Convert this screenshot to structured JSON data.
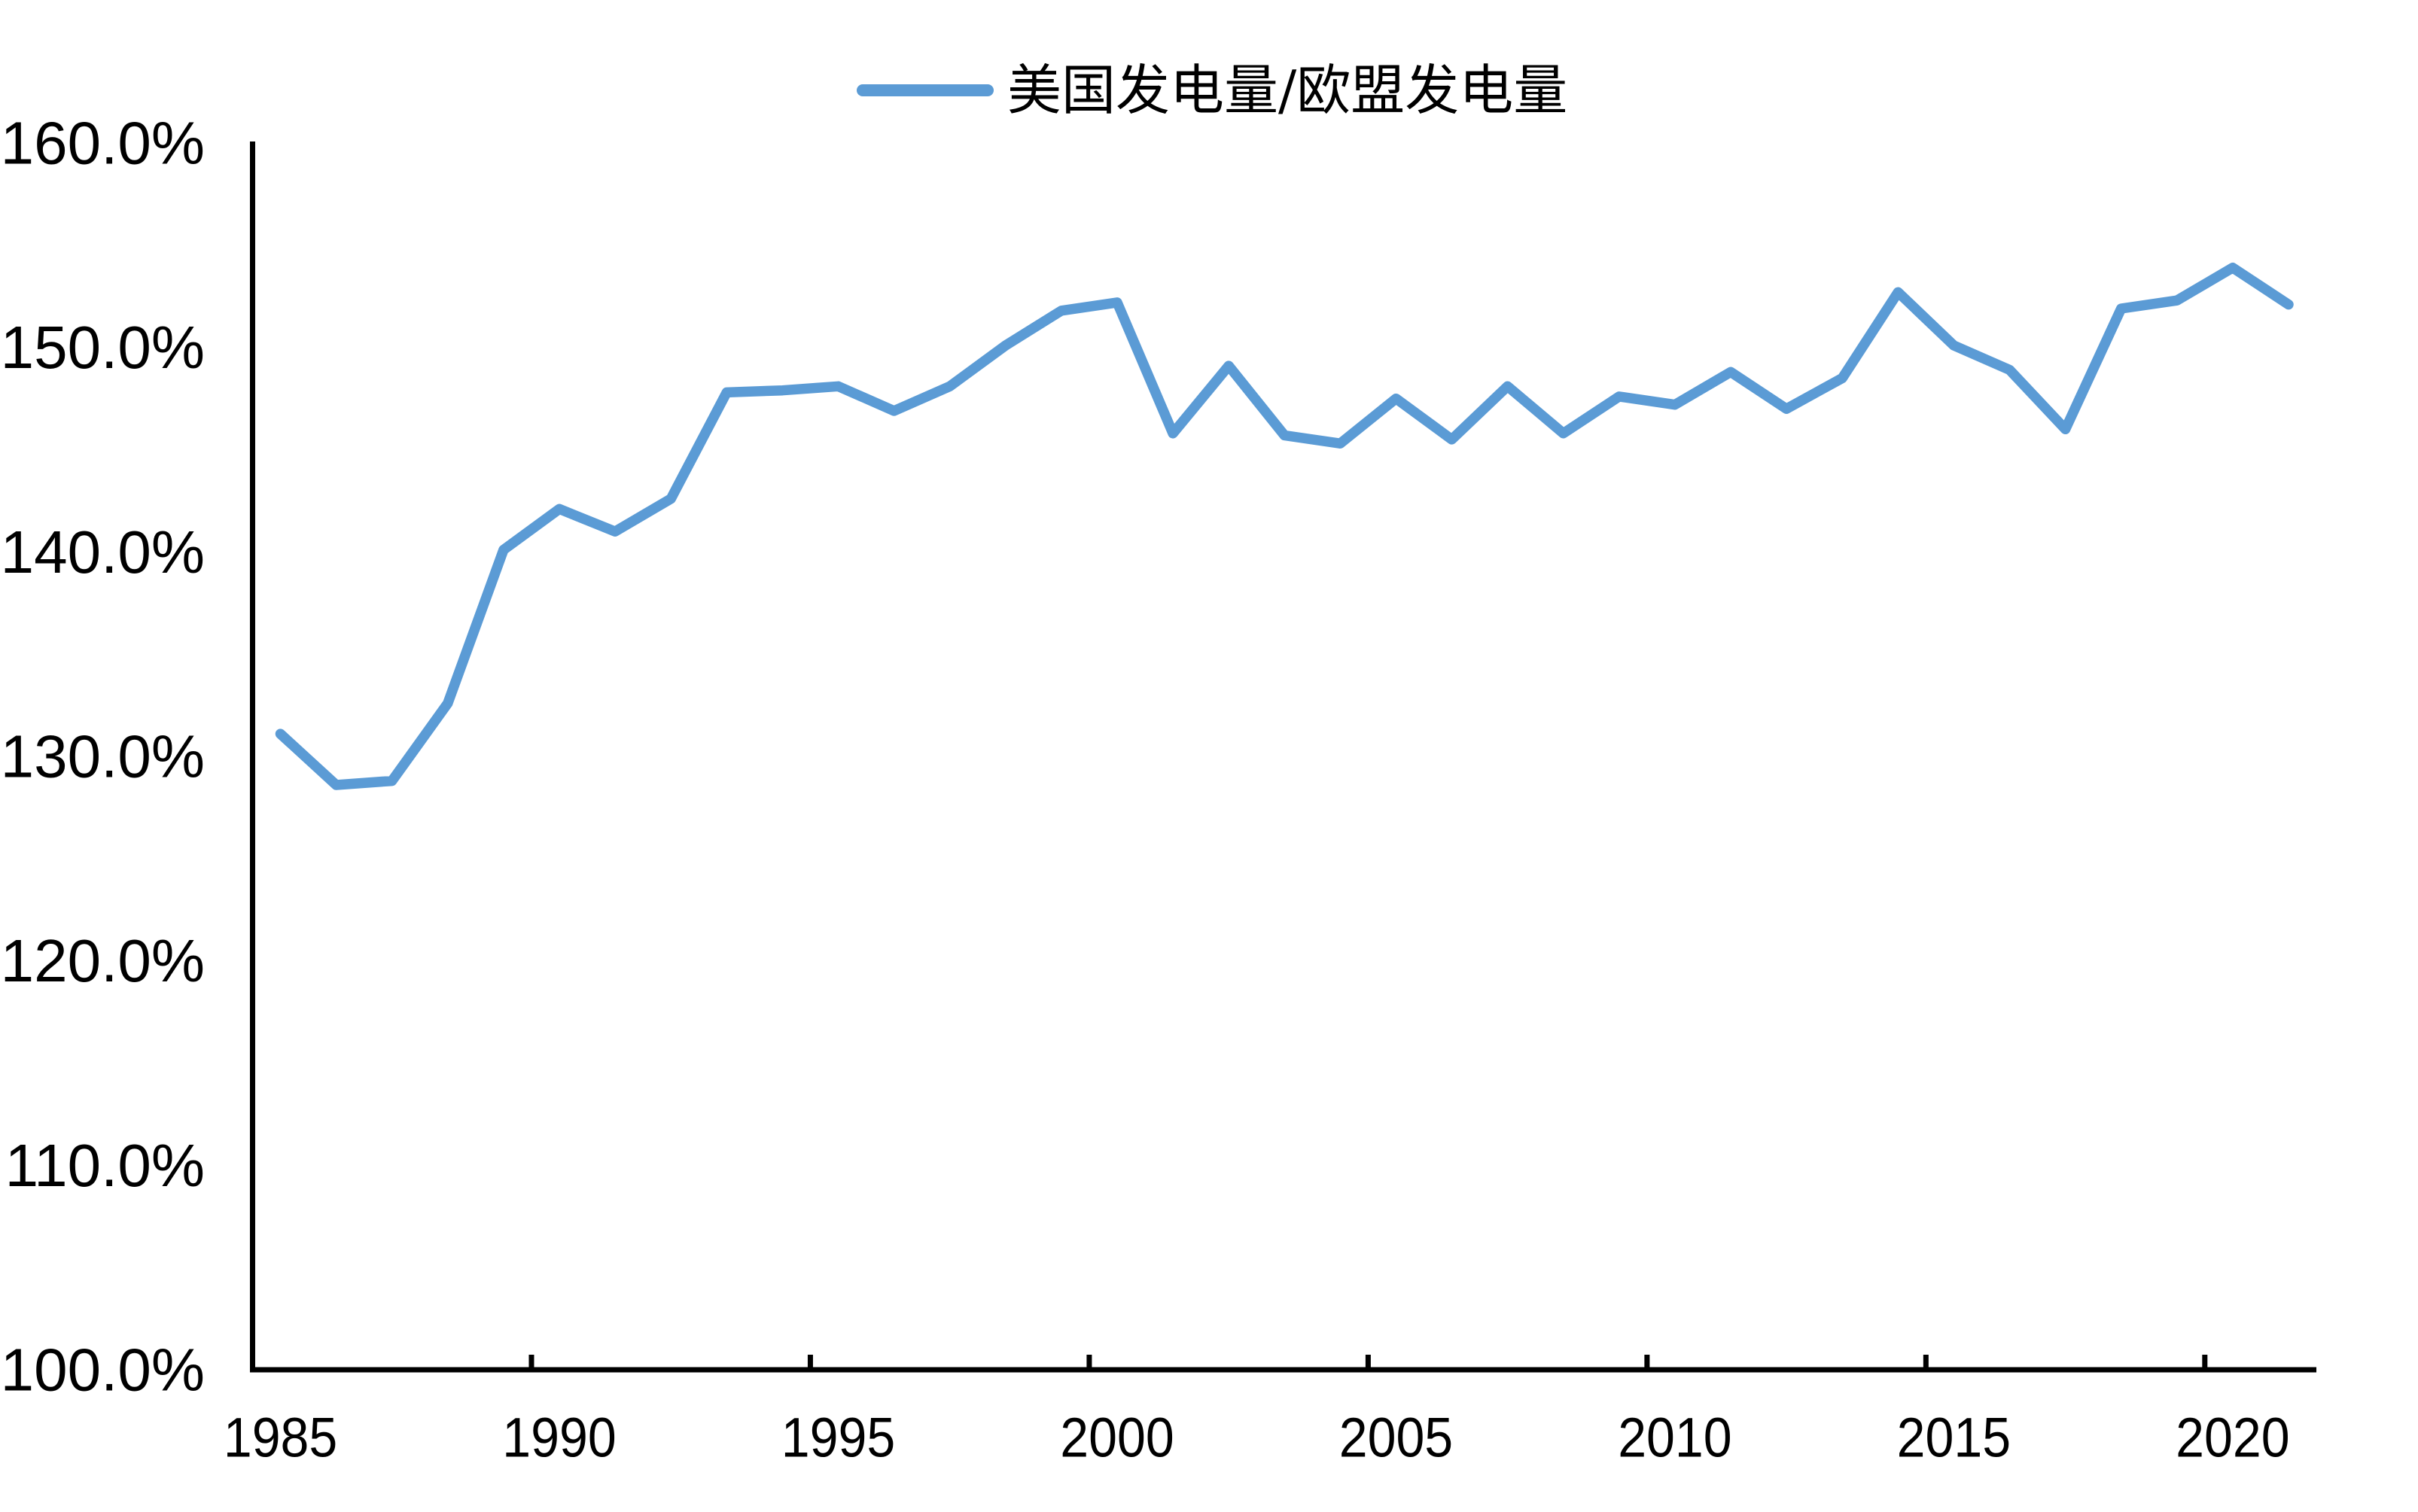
{
  "legend": {
    "label": "美国发电量/欧盟发电量",
    "color": "#5B9BD5"
  },
  "chart_data": {
    "type": "line",
    "title": "",
    "xlabel": "",
    "ylabel": "",
    "x": [
      1985,
      1986,
      1987,
      1988,
      1989,
      1990,
      1991,
      1992,
      1993,
      1994,
      1995,
      1996,
      1997,
      1998,
      1999,
      2000,
      2001,
      2002,
      2003,
      2004,
      2005,
      2006,
      2007,
      2008,
      2009,
      2010,
      2011,
      2012,
      2013,
      2014,
      2015,
      2016,
      2017,
      2018,
      2019,
      2020,
      2021
    ],
    "series": [
      {
        "name": "美国发电量/欧盟发电量",
        "color": "#5B9BD5",
        "values": [
          131.1,
          128.6,
          128.8,
          132.6,
          140.1,
          142.1,
          141.0,
          142.6,
          147.8,
          147.9,
          148.1,
          146.9,
          148.1,
          150.1,
          151.8,
          152.2,
          145.8,
          149.1,
          145.7,
          145.3,
          147.5,
          145.5,
          148.1,
          145.8,
          147.6,
          147.2,
          148.8,
          147.0,
          148.5,
          152.7,
          150.1,
          148.9,
          146.0,
          151.9,
          152.3,
          153.9,
          152.1
        ]
      }
    ],
    "ylim": [
      100,
      160
    ],
    "ytick_step": 10,
    "ytick_suffix": "%",
    "ytick_decimals": 1,
    "xticks": [
      1985,
      1990,
      1995,
      2000,
      2005,
      2010,
      2015,
      2020
    ],
    "grid": false,
    "legend_position": "top-center",
    "axis_color": "#000000",
    "background": "#FFFFFF"
  }
}
